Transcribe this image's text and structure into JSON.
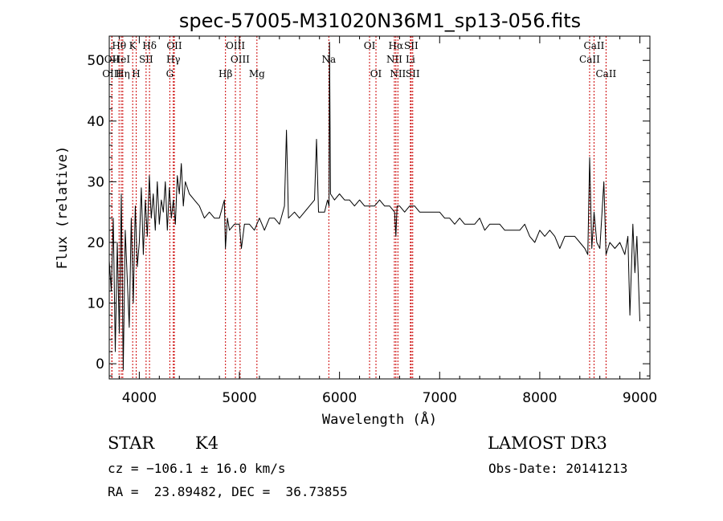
{
  "chart_data": {
    "type": "line",
    "title": "spec-57005-M31020N36M1_sp13-056.fits",
    "xlabel": "Wavelength (Å)",
    "ylabel": "Flux (relative)",
    "xlim": [
      3700,
      9100
    ],
    "ylim": [
      -2.5,
      54
    ],
    "xticks": [
      4000,
      5000,
      6000,
      7000,
      8000,
      9000
    ],
    "yticks": [
      0,
      10,
      20,
      30,
      40,
      50
    ],
    "x_minor_step": 200,
    "y_minor_step": 2,
    "series": [
      {
        "name": "flux",
        "x": [
          3700,
          3720,
          3740,
          3760,
          3780,
          3800,
          3820,
          3840,
          3860,
          3880,
          3900,
          3920,
          3940,
          3960,
          3980,
          4000,
          4020,
          4040,
          4060,
          4080,
          4100,
          4120,
          4140,
          4160,
          4180,
          4200,
          4220,
          4240,
          4260,
          4280,
          4300,
          4320,
          4340,
          4360,
          4380,
          4400,
          4420,
          4440,
          4460,
          4480,
          4500,
          4550,
          4600,
          4650,
          4700,
          4750,
          4800,
          4850,
          4860,
          4880,
          4900,
          4950,
          5000,
          5020,
          5050,
          5100,
          5150,
          5200,
          5250,
          5300,
          5350,
          5400,
          5450,
          5470,
          5490,
          5550,
          5600,
          5650,
          5700,
          5750,
          5770,
          5790,
          5850,
          5880,
          5895,
          5900,
          5910,
          5950,
          6000,
          6050,
          6100,
          6150,
          6200,
          6250,
          6300,
          6350,
          6400,
          6450,
          6500,
          6550,
          6563,
          6575,
          6600,
          6650,
          6700,
          6750,
          6800,
          6850,
          6900,
          6950,
          7000,
          7050,
          7100,
          7150,
          7200,
          7250,
          7300,
          7350,
          7400,
          7450,
          7500,
          7550,
          7600,
          7650,
          7700,
          7750,
          7800,
          7850,
          7900,
          7950,
          8000,
          8050,
          8100,
          8150,
          8200,
          8250,
          8300,
          8350,
          8400,
          8450,
          8480,
          8498,
          8520,
          8542,
          8570,
          8600,
          8640,
          8662,
          8700,
          8750,
          8800,
          8850,
          8880,
          8900,
          8930,
          8950,
          8970,
          9000
        ],
        "y": [
          17,
          12,
          24,
          2,
          20,
          5,
          28,
          -1,
          22,
          14,
          6,
          24,
          10,
          26,
          16,
          20,
          29,
          18,
          27,
          21,
          31,
          24,
          28,
          22,
          30,
          23,
          27,
          25,
          30,
          22,
          29,
          24,
          27,
          23,
          31,
          28,
          33,
          26,
          30,
          29,
          28,
          27,
          26,
          24,
          25,
          24,
          24,
          27,
          19,
          24,
          22,
          23,
          23,
          19,
          23,
          23,
          22,
          24,
          22,
          24,
          24,
          23,
          26,
          38.5,
          24,
          25,
          24,
          25,
          26,
          27,
          37,
          25,
          25,
          27,
          26,
          53,
          28,
          27,
          28,
          27,
          27,
          26,
          27,
          26,
          26,
          26,
          27,
          26,
          26,
          25,
          21,
          26,
          26,
          25,
          26,
          26,
          25,
          25,
          25,
          25,
          25,
          24,
          24,
          23,
          24,
          23,
          23,
          23,
          24,
          22,
          23,
          23,
          23,
          22,
          22,
          22,
          22,
          23,
          21,
          20,
          22,
          21,
          22,
          21,
          19,
          21,
          21,
          21,
          20,
          19,
          18,
          34,
          19,
          25,
          20,
          19,
          30,
          18,
          20,
          19,
          20,
          18,
          21,
          8,
          23,
          15,
          21,
          7
        ]
      }
    ],
    "spectral_lines": [
      {
        "label": "Hθ",
        "wavelength": 3798,
        "row": 0
      },
      {
        "label": "OII",
        "wavelength": 3727,
        "row": 1
      },
      {
        "label": "HeI",
        "wavelength": 3820,
        "row": 1
      },
      {
        "label": "OIII",
        "wavelength": 3726,
        "row": 2
      },
      {
        "label": "Hη",
        "wavelength": 3835,
        "row": 2
      },
      {
        "label": "K",
        "wavelength": 3934,
        "row": 0
      },
      {
        "label": "SII",
        "wavelength": 4068,
        "row": 1
      },
      {
        "label": "H",
        "wavelength": 3969,
        "row": 2
      },
      {
        "label": "Hδ",
        "wavelength": 4102,
        "row": 0
      },
      {
        "label": "OII",
        "wavelength": 4350,
        "row": 0
      },
      {
        "label": "Hγ",
        "wavelength": 4340,
        "row": 1
      },
      {
        "label": "G",
        "wavelength": 4305,
        "row": 2
      },
      {
        "label": "OIII",
        "wavelength": 4960,
        "row": 0
      },
      {
        "label": "OIII",
        "wavelength": 5007,
        "row": 1
      },
      {
        "label": "Hβ",
        "wavelength": 4861,
        "row": 2
      },
      {
        "label": "Mg",
        "wavelength": 5175,
        "row": 2
      },
      {
        "label": "Na",
        "wavelength": 5893,
        "row": 1
      },
      {
        "label": "OI",
        "wavelength": 6300,
        "row": 0
      },
      {
        "label": "OI",
        "wavelength": 6364,
        "row": 2
      },
      {
        "label": "Hα",
        "wavelength": 6563,
        "row": 0
      },
      {
        "label": "SII",
        "wavelength": 6716,
        "row": 0
      },
      {
        "label": "NII",
        "wavelength": 6548,
        "row": 1
      },
      {
        "label": "Li",
        "wavelength": 6708,
        "row": 1
      },
      {
        "label": "NII",
        "wavelength": 6583,
        "row": 2
      },
      {
        "label": "SII",
        "wavelength": 6731,
        "row": 2
      },
      {
        "label": "CaII",
        "wavelength": 8542,
        "row": 0
      },
      {
        "label": "CaII",
        "wavelength": 8498,
        "row": 1
      },
      {
        "label": "CaII",
        "wavelength": 8662,
        "row": 2
      }
    ],
    "colors": {
      "spectrum": "#000000",
      "lines": "#cc0000",
      "axes": "#000000"
    }
  },
  "info": {
    "class": "STAR",
    "subclass": "K4",
    "survey": "LAMOST DR3",
    "cz": "cz = −106.1 ± 16.0 km/s",
    "obs_date": "Obs-Date: 20141213",
    "coords": "RA =  23.89482, DEC =  36.73855"
  }
}
